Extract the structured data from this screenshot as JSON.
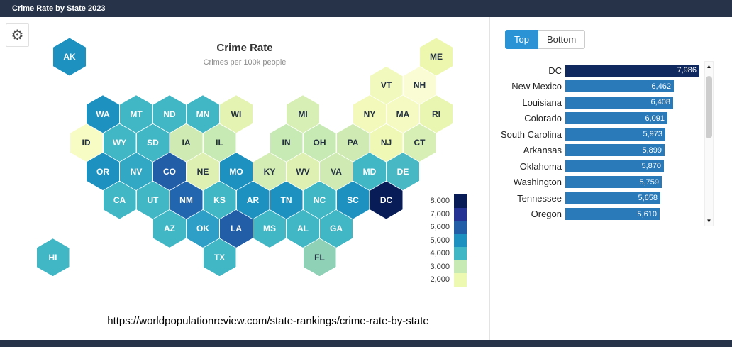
{
  "titlebar": {
    "title": "Crime Rate by State 2023"
  },
  "icons": {
    "gear": "⚙",
    "scroll_up": "▲",
    "scroll_down": "▼"
  },
  "colors": {
    "titlebar_bg": "#263349",
    "accent_blue": "#2a93d5",
    "panel_bar_blue": "#2a7ab9",
    "panel_bar_dc": "#10295f"
  },
  "map": {
    "title": "Crime Rate",
    "subtitle": "Crimes per 100k people",
    "source_url": "https://worldpopulationreview.com/state-rankings/crime-rate-by-state",
    "legend": [
      {
        "label": "8,000",
        "color": "#081d58"
      },
      {
        "label": "7,000",
        "color": "#253494"
      },
      {
        "label": "6,000",
        "color": "#225ea8"
      },
      {
        "label": "5,000",
        "color": "#1d91c0"
      },
      {
        "label": "4,000",
        "color": "#41b6c4"
      },
      {
        "label": "3,000",
        "color": "#c7e9b4"
      },
      {
        "label": "2,000",
        "color": "#edf8b1"
      }
    ],
    "states": [
      {
        "abbr": "AK",
        "row": 0,
        "col": -1,
        "color": "#1d91c0"
      },
      {
        "abbr": "ME",
        "row": 0,
        "col": 10,
        "color": "#edf7ae"
      },
      {
        "abbr": "VT",
        "row": 1,
        "col": 8.5,
        "color": "#f2f9bd"
      },
      {
        "abbr": "NH",
        "row": 1,
        "col": 9.5,
        "color": "#fafcd4"
      },
      {
        "abbr": "WA",
        "row": 2,
        "col": 0,
        "color": "#1d91c0"
      },
      {
        "abbr": "MT",
        "row": 2,
        "col": 1,
        "color": "#41b6c4"
      },
      {
        "abbr": "ND",
        "row": 2,
        "col": 2,
        "color": "#41b6c4"
      },
      {
        "abbr": "MN",
        "row": 2,
        "col": 3,
        "color": "#41b6c4"
      },
      {
        "abbr": "WI",
        "row": 2,
        "col": 4,
        "color": "#e4f3b2"
      },
      {
        "abbr": "MI",
        "row": 2,
        "col": 6,
        "color": "#d7eeb4"
      },
      {
        "abbr": "NY",
        "row": 2,
        "col": 8,
        "color": "#f2f9bb"
      },
      {
        "abbr": "MA",
        "row": 2,
        "col": 9,
        "color": "#f4fac1"
      },
      {
        "abbr": "RI",
        "row": 2,
        "col": 10,
        "color": "#e9f6b1"
      },
      {
        "abbr": "ID",
        "row": 3,
        "col": -0.5,
        "color": "#f7fbc4"
      },
      {
        "abbr": "WY",
        "row": 3,
        "col": 0.5,
        "color": "#41b6c4"
      },
      {
        "abbr": "SD",
        "row": 3,
        "col": 1.5,
        "color": "#41b6c4"
      },
      {
        "abbr": "IA",
        "row": 3,
        "col": 2.5,
        "color": "#cfebb3"
      },
      {
        "abbr": "IL",
        "row": 3,
        "col": 3.5,
        "color": "#c7e9b4"
      },
      {
        "abbr": "IN",
        "row": 3,
        "col": 5.5,
        "color": "#c7e9b4"
      },
      {
        "abbr": "OH",
        "row": 3,
        "col": 6.5,
        "color": "#c7e9b4"
      },
      {
        "abbr": "PA",
        "row": 3,
        "col": 7.5,
        "color": "#cfebb3"
      },
      {
        "abbr": "NJ",
        "row": 3,
        "col": 8.5,
        "color": "#eff8b5"
      },
      {
        "abbr": "CT",
        "row": 3,
        "col": 9.5,
        "color": "#d7eeb4"
      },
      {
        "abbr": "OR",
        "row": 4,
        "col": 0,
        "color": "#1d91c0"
      },
      {
        "abbr": "NV",
        "row": 4,
        "col": 1,
        "color": "#33a8c4"
      },
      {
        "abbr": "CO",
        "row": 4,
        "col": 2,
        "color": "#225ea8"
      },
      {
        "abbr": "NE",
        "row": 4,
        "col": 3,
        "color": "#dff1b2"
      },
      {
        "abbr": "MO",
        "row": 4,
        "col": 4,
        "color": "#1d91c0"
      },
      {
        "abbr": "KY",
        "row": 4,
        "col": 5,
        "color": "#d3edb4"
      },
      {
        "abbr": "WV",
        "row": 4,
        "col": 6,
        "color": "#dff1b2"
      },
      {
        "abbr": "VA",
        "row": 4,
        "col": 7,
        "color": "#cfebb3"
      },
      {
        "abbr": "MD",
        "row": 4,
        "col": 8,
        "color": "#41b6c4"
      },
      {
        "abbr": "DE",
        "row": 4,
        "col": 9,
        "color": "#48b8c4"
      },
      {
        "abbr": "CA",
        "row": 5,
        "col": 0.5,
        "color": "#41b6c4"
      },
      {
        "abbr": "UT",
        "row": 5,
        "col": 1.5,
        "color": "#41b6c4"
      },
      {
        "abbr": "NM",
        "row": 5,
        "col": 2.5,
        "color": "#2166ae"
      },
      {
        "abbr": "KS",
        "row": 5,
        "col": 3.5,
        "color": "#41b6c4"
      },
      {
        "abbr": "AR",
        "row": 5,
        "col": 4.5,
        "color": "#1d91c0"
      },
      {
        "abbr": "TN",
        "row": 5,
        "col": 5.5,
        "color": "#1d91c0"
      },
      {
        "abbr": "NC",
        "row": 5,
        "col": 6.5,
        "color": "#41b6c4"
      },
      {
        "abbr": "SC",
        "row": 5,
        "col": 7.5,
        "color": "#1d91c0"
      },
      {
        "abbr": "DC",
        "row": 5,
        "col": 8.5,
        "color": "#081d58"
      },
      {
        "abbr": "AZ",
        "row": 6,
        "col": 2,
        "color": "#41b6c4"
      },
      {
        "abbr": "OK",
        "row": 6,
        "col": 3,
        "color": "#2e9fc6"
      },
      {
        "abbr": "LA",
        "row": 6,
        "col": 4,
        "color": "#225ea8"
      },
      {
        "abbr": "MS",
        "row": 6,
        "col": 5,
        "color": "#41b6c4"
      },
      {
        "abbr": "AL",
        "row": 6,
        "col": 6,
        "color": "#41b6c4"
      },
      {
        "abbr": "GA",
        "row": 6,
        "col": 7,
        "color": "#41b6c4"
      },
      {
        "abbr": "TX",
        "row": 7,
        "col": 3.5,
        "color": "#41b6c4"
      },
      {
        "abbr": "FL",
        "row": 7,
        "col": 6.5,
        "color": "#8ed1b6"
      },
      {
        "abbr": "HI",
        "row": 7,
        "col": -1.5,
        "color": "#41b6c4"
      }
    ]
  },
  "panel": {
    "tabs": [
      {
        "label": "Top",
        "active": true
      },
      {
        "label": "Bottom",
        "active": false
      }
    ],
    "max_value": 7986,
    "rows": [
      {
        "name": "DC",
        "value": "7,986",
        "value_num": 7986,
        "bar_color": "#10295f"
      },
      {
        "name": "New Mexico",
        "value": "6,462",
        "value_num": 6462,
        "bar_color": "#2a7ab9"
      },
      {
        "name": "Louisiana",
        "value": "6,408",
        "value_num": 6408,
        "bar_color": "#2a7ab9"
      },
      {
        "name": "Colorado",
        "value": "6,091",
        "value_num": 6091,
        "bar_color": "#2a7ab9"
      },
      {
        "name": "South Carolina",
        "value": "5,973",
        "value_num": 5973,
        "bar_color": "#2a7ab9"
      },
      {
        "name": "Arkansas",
        "value": "5,899",
        "value_num": 5899,
        "bar_color": "#2a7ab9"
      },
      {
        "name": "Oklahoma",
        "value": "5,870",
        "value_num": 5870,
        "bar_color": "#2a7ab9"
      },
      {
        "name": "Washington",
        "value": "5,759",
        "value_num": 5759,
        "bar_color": "#2a7ab9"
      },
      {
        "name": "Tennessee",
        "value": "5,658",
        "value_num": 5658,
        "bar_color": "#2a7ab9"
      },
      {
        "name": "Oregon",
        "value": "5,610",
        "value_num": 5610,
        "bar_color": "#2a7ab9"
      }
    ]
  },
  "chart_data": [
    {
      "type": "heatmap",
      "title": "Crime Rate",
      "subtitle": "Crimes per 100k people",
      "legend_ticks": [
        8000,
        7000,
        6000,
        5000,
        4000,
        3000,
        2000
      ],
      "legend_colors": [
        "#081d58",
        "#253494",
        "#225ea8",
        "#1d91c0",
        "#41b6c4",
        "#c7e9b4",
        "#edf8b1"
      ],
      "legend_position": "right"
    },
    {
      "type": "bar",
      "orientation": "horizontal",
      "title": "Top",
      "categories": [
        "DC",
        "New Mexico",
        "Louisiana",
        "Colorado",
        "South Carolina",
        "Arkansas",
        "Oklahoma",
        "Washington",
        "Tennessee",
        "Oregon"
      ],
      "values": [
        7986,
        6462,
        6408,
        6091,
        5973,
        5899,
        5870,
        5759,
        5658,
        5610
      ],
      "xlim": [
        0,
        7986
      ],
      "legend_position": "none"
    }
  ]
}
